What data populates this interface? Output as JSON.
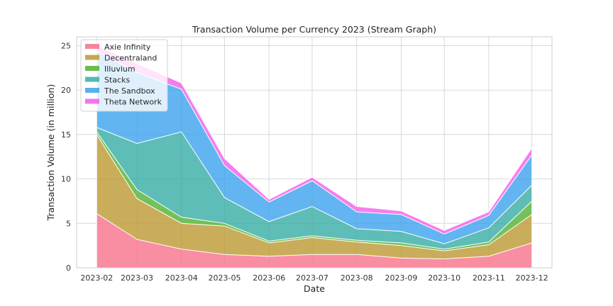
{
  "chart_data": {
    "type": "area",
    "stacked": true,
    "title": "Transaction Volume per Currency 2023 (Stream Graph)",
    "xlabel": "Date",
    "ylabel": "Transaction Volume (in million)",
    "x": [
      "2023-02",
      "2023-03",
      "2023-04",
      "2023-05",
      "2023-06",
      "2023-07",
      "2023-08",
      "2023-09",
      "2023-10",
      "2023-11",
      "2023-12"
    ],
    "x_days": [
      0,
      28,
      59,
      89,
      120,
      150,
      181,
      212,
      242,
      273,
      303
    ],
    "ylim": [
      0,
      26
    ],
    "yticks": [
      0,
      5,
      10,
      15,
      20,
      25
    ],
    "grid": true,
    "legend": "top-left",
    "series": [
      {
        "name": "Axie Infinity",
        "color": "#f77189",
        "values": [
          6.1,
          3.2,
          2.1,
          1.5,
          1.3,
          1.5,
          1.5,
          1.1,
          1.0,
          1.3,
          2.8
        ]
      },
      {
        "name": "Decentraland",
        "color": "#bb9832",
        "values": [
          8.9,
          4.6,
          2.9,
          3.2,
          1.5,
          1.9,
          1.4,
          1.4,
          0.9,
          1.3,
          3.2
        ]
      },
      {
        "name": "Illuvium",
        "color": "#50b131",
        "values": [
          0.3,
          1.0,
          0.7,
          0.3,
          0.2,
          0.2,
          0.2,
          0.3,
          0.2,
          0.3,
          1.5
        ]
      },
      {
        "name": "Stacks",
        "color": "#36ada4",
        "values": [
          0.5,
          5.2,
          9.6,
          2.9,
          2.2,
          3.3,
          1.3,
          1.3,
          0.6,
          1.6,
          1.8
        ]
      },
      {
        "name": "The Sandbox",
        "color": "#3ba3ec",
        "values": [
          8.6,
          8.0,
          4.8,
          3.6,
          2.2,
          2.9,
          1.9,
          1.9,
          1.1,
          1.4,
          3.4
        ]
      },
      {
        "name": "Theta Network",
        "color": "#f45deb",
        "values": [
          0.6,
          1.0,
          0.7,
          0.8,
          0.3,
          0.4,
          0.6,
          0.4,
          0.4,
          0.4,
          0.8
        ]
      }
    ]
  }
}
